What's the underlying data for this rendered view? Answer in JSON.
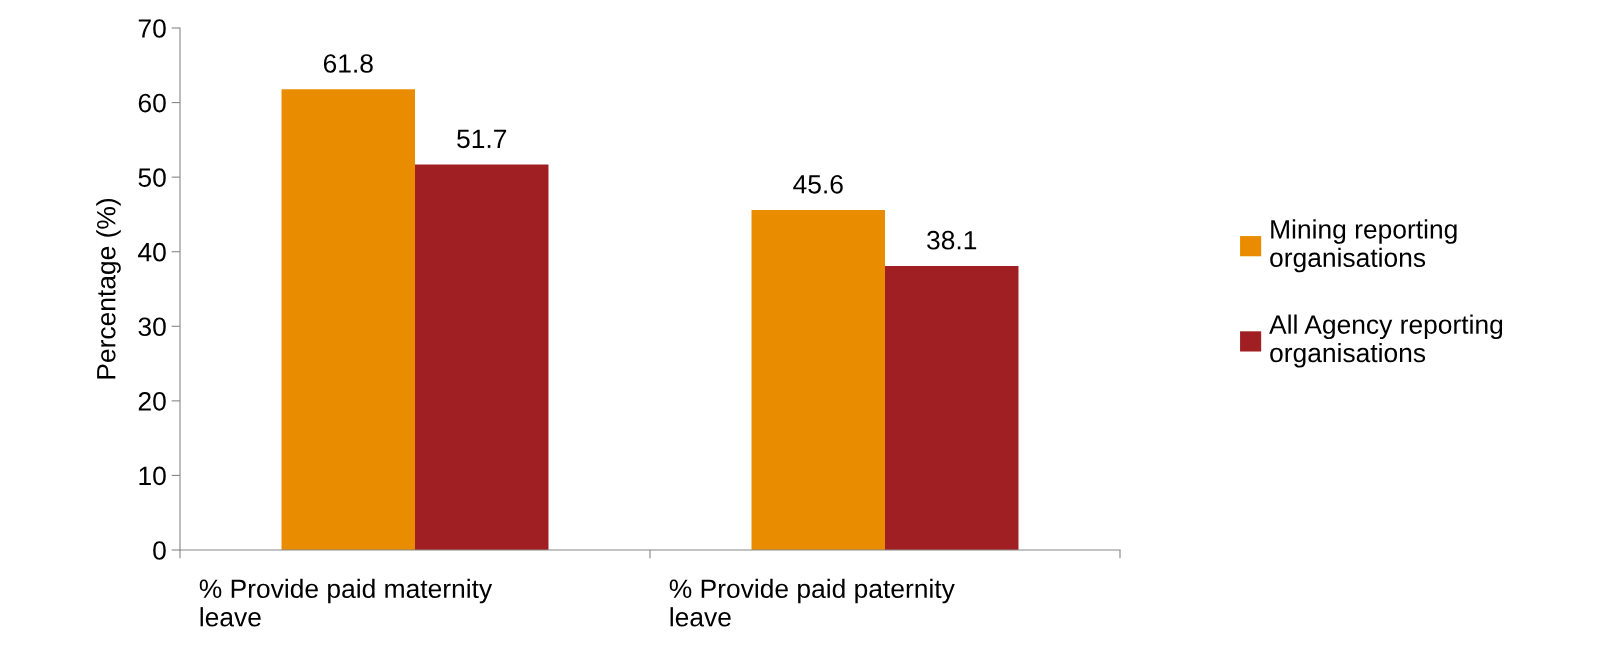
{
  "chart_data": {
    "type": "bar",
    "ylabel": "Percentage (%)",
    "categories": [
      "% Provide paid maternity\nleave",
      "% Provide paid paternity\nleave"
    ],
    "series": [
      {
        "name": "Mining reporting\norganisations",
        "color": "#ea8c00",
        "values": [
          61.8,
          45.6
        ]
      },
      {
        "name": "All Agency reporting\norganisations",
        "color": "#a01f22",
        "values": [
          51.7,
          38.1
        ]
      }
    ],
    "ylim": [
      0,
      70
    ],
    "yticks": [
      0,
      10,
      20,
      30,
      40,
      50,
      60,
      70
    ],
    "data_labels": true,
    "grid": false,
    "legend": "right"
  }
}
